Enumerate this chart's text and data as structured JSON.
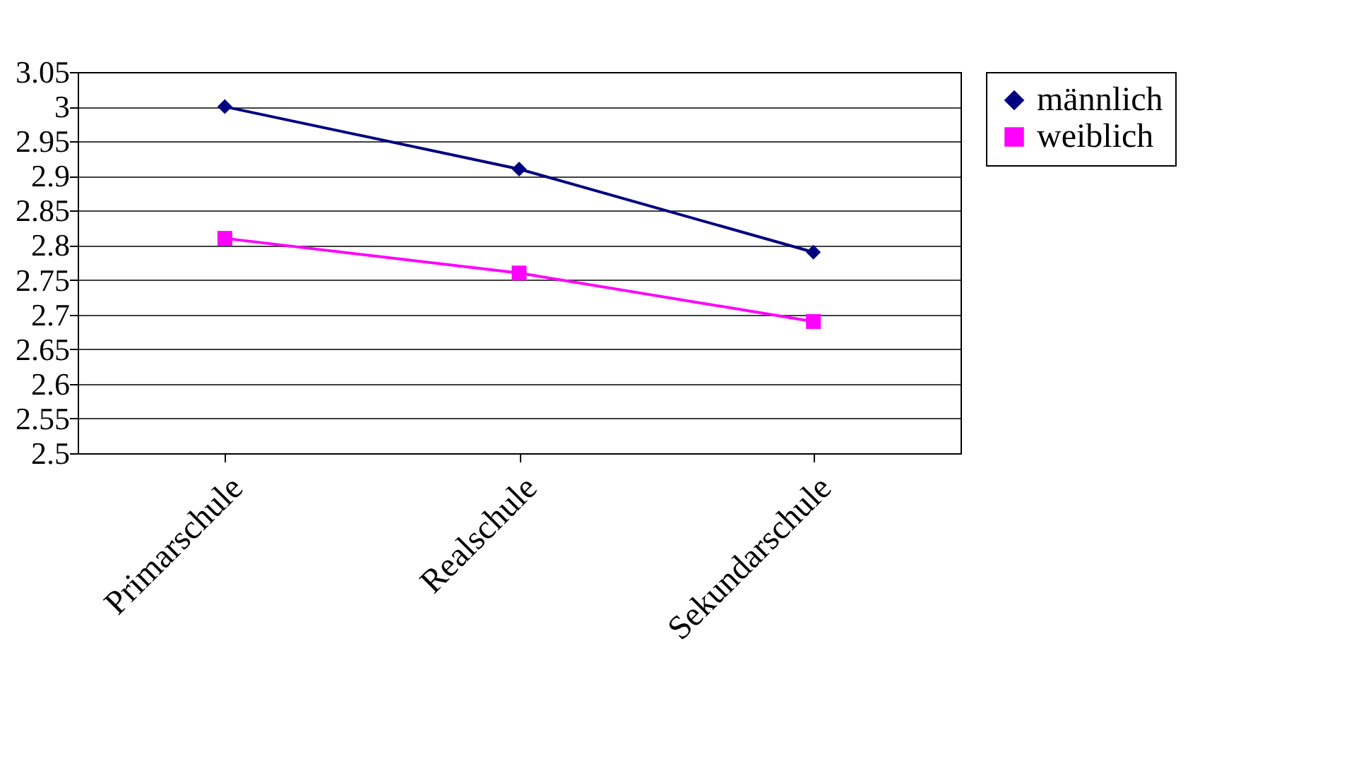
{
  "chart_data": {
    "type": "line",
    "categories": [
      "Primarschule",
      "Realschule",
      "Sekundarschule"
    ],
    "series": [
      {
        "name": "männlich",
        "color": "#000080",
        "values": [
          3.0,
          2.91,
          2.79
        ],
        "marker": "diamond"
      },
      {
        "name": "weiblich",
        "color": "#ff00ff",
        "values": [
          2.81,
          2.76,
          2.69
        ],
        "marker": "square"
      }
    ],
    "ylim": [
      2.5,
      3.05
    ],
    "yticks": [
      2.5,
      2.55,
      2.6,
      2.65,
      2.7,
      2.75,
      2.8,
      2.85,
      2.9,
      2.95,
      3,
      3.05
    ],
    "grid": "y",
    "legend": "right",
    "line_style": "solid"
  }
}
